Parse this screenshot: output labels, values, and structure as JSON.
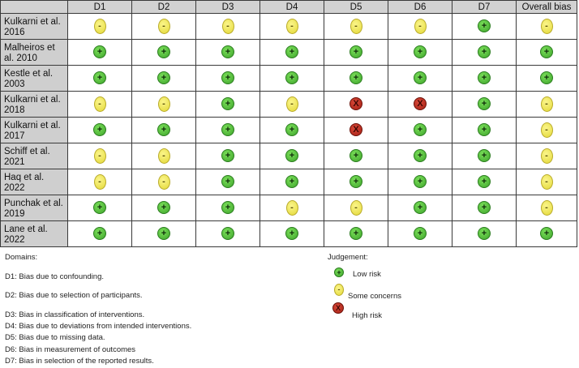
{
  "columns": [
    "D1",
    "D2",
    "D3",
    "D4",
    "D5",
    "D6",
    "D7",
    "Overall bias"
  ],
  "studies": [
    {
      "name": "Kulkarni et al. 2016",
      "ratings": [
        "some",
        "some",
        "some",
        "some",
        "some",
        "some",
        "low",
        "some"
      ]
    },
    {
      "name": "Malheiros et al. 2010",
      "ratings": [
        "low",
        "low",
        "low",
        "low",
        "low",
        "low",
        "low",
        "low"
      ]
    },
    {
      "name": "Kestle et al. 2003",
      "ratings": [
        "low",
        "low",
        "low",
        "low",
        "low",
        "low",
        "low",
        "low"
      ]
    },
    {
      "name": "Kulkarni et al. 2018",
      "ratings": [
        "some",
        "some",
        "low",
        "some",
        "high",
        "high",
        "low",
        "some"
      ]
    },
    {
      "name": "Kulkarni et al. 2017",
      "ratings": [
        "low",
        "low",
        "low",
        "low",
        "high",
        "low",
        "low",
        "some"
      ]
    },
    {
      "name": "Schiff et al. 2021",
      "ratings": [
        "some",
        "some",
        "low",
        "low",
        "low",
        "low",
        "low",
        "some"
      ]
    },
    {
      "name": "Haq et al. 2022",
      "ratings": [
        "some",
        "some",
        "low",
        "low",
        "low",
        "low",
        "low",
        "some"
      ]
    },
    {
      "name": "Punchak et al. 2019",
      "ratings": [
        "low",
        "low",
        "low",
        "some",
        "some",
        "low",
        "low",
        "some"
      ]
    },
    {
      "name": "Lane et al. 2022",
      "ratings": [
        "low",
        "low",
        "low",
        "low",
        "low",
        "low",
        "low",
        "low"
      ]
    }
  ],
  "symbols": {
    "low": "+",
    "some": "-",
    "high": "X"
  },
  "domains": {
    "title": "Domains:",
    "items": [
      "D1: Bias due to confounding.",
      "D2: Bias due to selection of participants.",
      "D3: Bias in classification of interventions.",
      "D4: Bias due to deviations from intended interventions.",
      "D5: Bias due to missing data.",
      "D6: Bias in measurement of outcomes",
      "D7: Bias in selection of the reported results."
    ]
  },
  "judgement": {
    "title": "Judgement:",
    "items": [
      {
        "level": "low",
        "label": "Low risk"
      },
      {
        "level": "some",
        "label": "Some concerns"
      },
      {
        "level": "high",
        "label": "High risk"
      }
    ]
  }
}
